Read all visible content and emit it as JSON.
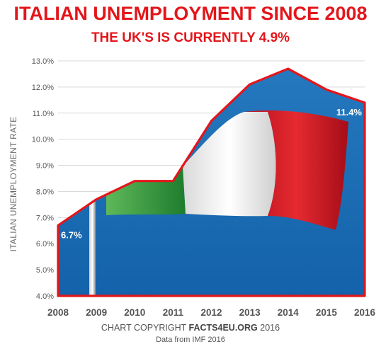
{
  "title": "ITALIAN UNEMPLOYMENT SINCE 2008",
  "subtitle": "THE UK'S IS CURRENTLY 4.9%",
  "footer": {
    "copyright_prefix": "CHART COPYRIGHT ",
    "copyright_brand": "FACTS4EU.ORG",
    "copyright_year": " 2016",
    "source": "Data from IMF 2016"
  },
  "chart_data": {
    "type": "area",
    "ylabel": "ITALIAN UNEMPLOYMENT RATE",
    "xlabel": "",
    "x": [
      "2008",
      "2009",
      "2010",
      "2011",
      "2012",
      "2013",
      "2014",
      "2015",
      "2016"
    ],
    "series": [
      {
        "values": [
          6.7,
          7.7,
          8.4,
          8.4,
          10.7,
          12.1,
          12.7,
          11.9,
          11.4
        ]
      }
    ],
    "ylim": [
      4.0,
      13.0
    ],
    "yticks": [
      "4.0%",
      "5.0%",
      "6.0%",
      "7.0%",
      "8.0%",
      "9.0%",
      "10.0%",
      "11.0%",
      "12.0%",
      "13.0%"
    ],
    "data_labels": [
      {
        "x": "2008",
        "text": "6.7%"
      },
      {
        "x": "2016",
        "text": "11.4%"
      }
    ],
    "grid": true,
    "colors": {
      "line": "#e3161b",
      "fill": "#1a6db3",
      "flag_green": "#2e9a3e",
      "flag_white": "#f4f4f4",
      "flag_red": "#d4202a"
    }
  }
}
